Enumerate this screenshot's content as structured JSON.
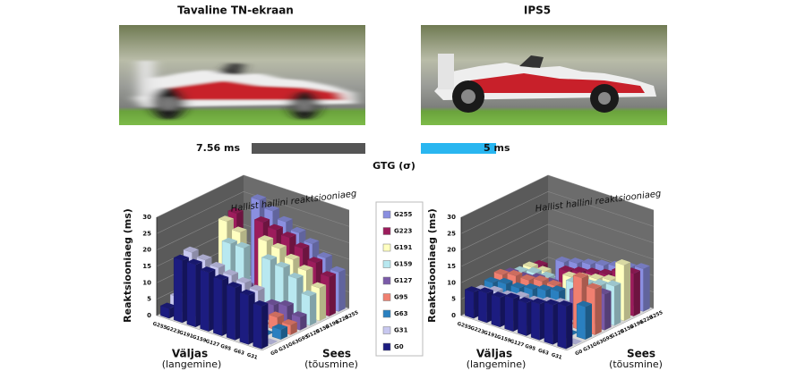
{
  "chart_data": [
    {
      "type": "hbar",
      "categories": [
        "Tavaline TN-ekraan",
        "IPS5"
      ],
      "values": [
        7.56,
        5
      ],
      "value_labels": [
        "7.56 ms",
        "5 ms"
      ],
      "colors": [
        "#555555",
        "#29b6f0"
      ],
      "x_label": "GTG (σ)"
    },
    {
      "type": "bar3d",
      "title": "Hallist hallini reaktsiooniaeg",
      "y_label": "Reaktsiooniaeg (ms)",
      "x_label": "Väljas",
      "x_sublabel": "(langemine)",
      "z_label": "Sees",
      "z_sublabel": "(tõusmine)",
      "categories": [
        "G255",
        "G223",
        "G191",
        "G159",
        "G127",
        "G95",
        "G63",
        "G31"
      ],
      "depth_categories": [
        "G0",
        "G31",
        "G63",
        "G95",
        "G127",
        "G159",
        "G191",
        "G223",
        "G255"
      ],
      "ylim": [
        0,
        30
      ],
      "yticks": [
        0,
        5,
        10,
        15,
        20,
        25,
        30
      ],
      "series": [
        {
          "name": "G255",
          "color": "#8a8fe0",
          "values": [
            0,
            26,
            24,
            22,
            20,
            18,
            15,
            12
          ]
        },
        {
          "name": "G223",
          "color": "#9c1c5c",
          "values": [
            22,
            0,
            22,
            21,
            20,
            18,
            15,
            12
          ]
        },
        {
          "name": "G191",
          "color": "#ffffc0",
          "values": [
            21,
            19,
            0,
            19,
            18,
            16,
            14,
            10
          ]
        },
        {
          "name": "G159",
          "color": "#b8e8f0",
          "values": [
            8,
            17,
            17,
            0,
            16,
            15,
            13,
            9
          ]
        },
        {
          "name": "G127",
          "color": "#7a5aa8",
          "values": [
            5,
            6,
            7,
            8,
            0,
            5,
            6,
            4
          ]
        },
        {
          "name": "G95",
          "color": "#f08070",
          "values": [
            4,
            5,
            5,
            6,
            6,
            0,
            4,
            3
          ]
        },
        {
          "name": "G63",
          "color": "#2a80c0",
          "values": [
            3,
            4,
            4,
            4,
            5,
            4,
            0,
            3
          ]
        },
        {
          "name": "G31",
          "color": "#c8c8f0",
          "values": [
            5,
            20,
            19,
            18,
            17,
            16,
            15,
            0
          ]
        },
        {
          "name": "G0",
          "color": "#1c1c80",
          "values": [
            3,
            19,
            19,
            18,
            17,
            16,
            15,
            13
          ]
        }
      ]
    },
    {
      "type": "bar3d",
      "title": "Hallist hallini reaktsiooniaeg",
      "y_label": "Reaktsiooniaeg (ms)",
      "x_label": "Väljas",
      "x_sublabel": "(langemine)",
      "z_label": "Sees",
      "z_sublabel": "(tõusmine)",
      "categories": [
        "G255",
        "G223",
        "G191",
        "G159",
        "G127",
        "G95",
        "G63",
        "G31"
      ],
      "depth_categories": [
        "G0",
        "G31",
        "G63",
        "G95",
        "G127",
        "G159",
        "G191",
        "G223",
        "G255"
      ],
      "ylim": [
        0,
        30
      ],
      "yticks": [
        0,
        5,
        10,
        15,
        20,
        25,
        30
      ],
      "series": [
        {
          "values": [
            0,
            7,
            8,
            9,
            10,
            11,
            12,
            13
          ]
        },
        {
          "values": [
            6,
            0,
            7,
            8,
            9,
            10,
            12,
            13
          ]
        },
        {
          "values": [
            7,
            7,
            0,
            8,
            9,
            10,
            11,
            17
          ]
        },
        {
          "values": [
            7,
            8,
            8,
            0,
            9,
            10,
            11,
            12
          ]
        },
        {
          "values": [
            8,
            8,
            9,
            9,
            0,
            9,
            10,
            11
          ]
        },
        {
          "values": [
            9,
            10,
            10,
            11,
            11,
            0,
            16,
            14
          ]
        },
        {
          "values": [
            8,
            9,
            9,
            10,
            11,
            12,
            0,
            10
          ]
        },
        {
          "values": [
            7,
            8,
            8,
            9,
            9,
            10,
            11,
            0
          ]
        },
        {
          "values": [
            8,
            9,
            9,
            10,
            10,
            11,
            12,
            13
          ]
        }
      ]
    }
  ]
}
